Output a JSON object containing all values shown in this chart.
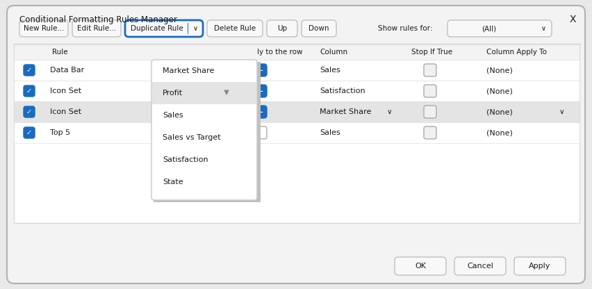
{
  "bg_color": "#e8e8e8",
  "dialog_bg": "#f3f3f3",
  "dialog_border": "#c8c8c8",
  "dialog_title": "Conditional Formatting Rules Manager",
  "close_x": "X",
  "toolbar_buttons": [
    "New Rule...",
    "Edit Rule...",
    "Delete Rule",
    "Up",
    "Down"
  ],
  "duplicate_btn": "Duplicate Rule",
  "show_rules_label": "Show rules for:",
  "show_rules_value": "(All)",
  "table_headers": [
    "Rule",
    "ly to the row",
    "Column",
    "Stop If True",
    "Column Apply To"
  ],
  "table_rows": [
    {
      "rule": "Data Bar",
      "checked": true,
      "apply_row": true,
      "column": "Sales",
      "stop": false,
      "col_apply": "(None)",
      "highlighted": false
    },
    {
      "rule": "Icon Set",
      "checked": true,
      "apply_row": true,
      "column": "Satisfaction",
      "stop": false,
      "col_apply": "(None)",
      "highlighted": false
    },
    {
      "rule": "Icon Set",
      "checked": true,
      "apply_row": true,
      "column": "Market Share",
      "stop": false,
      "col_apply": "(None)",
      "highlighted": true
    },
    {
      "rule": "Top 5",
      "checked": true,
      "apply_row": false,
      "column": "Sales",
      "stop": false,
      "col_apply": "(None)",
      "highlighted": false
    }
  ],
  "dropdown_items": [
    "Market Share",
    "Profit",
    "Sales",
    "Sales vs Target",
    "Satisfaction",
    "State"
  ],
  "dropdown_highlight": "Profit",
  "bottom_buttons": [
    "OK",
    "Cancel",
    "Apply"
  ],
  "blue_check": "#1a6bbf",
  "blue_btn": "#1a6bbf",
  "btn_bg": "#f8f8f8",
  "btn_border": "#c0c0c0",
  "duplicate_btn_border": "#1a6bbf",
  "row_highlight_color": "#e4e4e4",
  "dropdown_highlight_bg": "#e4e4e4",
  "table_bg": "#ffffff",
  "table_border": "#d8d8d8",
  "white": "#ffffff",
  "text_color": "#1a1a1a",
  "header_bg": "#f3f3f3",
  "dialog_inner_bg": "#f8f8f8",
  "check_border": "#aaaaaa"
}
